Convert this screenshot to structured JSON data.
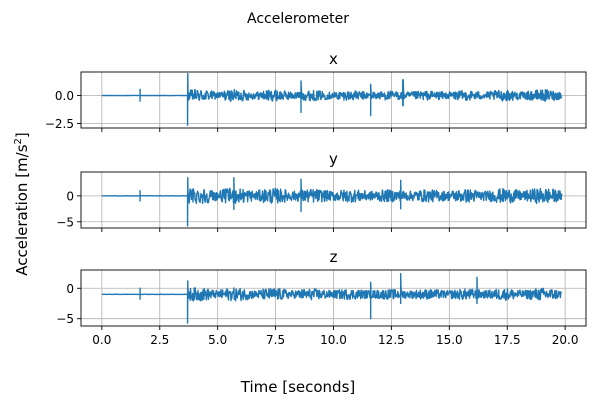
{
  "chart_data": {
    "type": "line",
    "title": "Accelerometer",
    "xlabel": "Time [seconds]",
    "ylabel_prefix": "Acceleration [m/s",
    "ylabel_sup": "2",
    "ylabel_suffix": "]",
    "grid": true,
    "color": "#1f77b4",
    "xlim": [
      -0.9,
      20.9
    ],
    "x_ticks": [
      0.0,
      2.5,
      5.0,
      7.5,
      10.0,
      12.5,
      15.0,
      17.5,
      20.0
    ],
    "x_tick_labels": [
      "0.0",
      "2.5",
      "5.0",
      "7.5",
      "10.0",
      "12.5",
      "15.0",
      "17.5",
      "20.0"
    ],
    "subplots": [
      {
        "title": "x",
        "ylim": [
          -2.9,
          2.1
        ],
        "y_ticks": [
          0.0,
          -2.5
        ],
        "y_tick_labels": [
          "0.0",
          "−2.5"
        ],
        "baseline": 0.0,
        "noise_amp": 0.55,
        "pre_spike": {
          "x": 1.65,
          "lo": -0.5,
          "hi": 0.55
        },
        "onset": {
          "x": 3.7,
          "lo": -2.65,
          "hi": 1.95
        },
        "spikes": [
          {
            "x": 8.6,
            "lo": -1.5,
            "hi": 1.3
          },
          {
            "x": 11.6,
            "lo": -1.8,
            "hi": 1.0
          },
          {
            "x": 13.0,
            "lo": -0.9,
            "hi": 1.4
          }
        ],
        "x_end": 19.85
      },
      {
        "title": "y",
        "ylim": [
          -6.2,
          4.6
        ],
        "y_ticks": [
          0,
          -5
        ],
        "y_tick_labels": [
          "0",
          "−5"
        ],
        "baseline": 0.0,
        "noise_amp": 1.6,
        "pre_spike": {
          "x": 1.65,
          "lo": -1.0,
          "hi": 1.0
        },
        "onset": {
          "x": 3.7,
          "lo": -5.8,
          "hi": 3.5
        },
        "spikes": [
          {
            "x": 5.7,
            "lo": -2.6,
            "hi": 3.5
          },
          {
            "x": 8.6,
            "lo": -3.0,
            "hi": 3.2
          },
          {
            "x": 12.9,
            "lo": -2.5,
            "hi": 3.0
          }
        ],
        "x_end": 19.85
      },
      {
        "title": "z",
        "ylim": [
          -6.2,
          3.0
        ],
        "y_ticks": [
          0,
          -5
        ],
        "y_tick_labels": [
          "0",
          "−5"
        ],
        "baseline": -1.0,
        "noise_amp": 1.1,
        "pre_spike": {
          "x": 1.65,
          "lo": -1.8,
          "hi": 0.0
        },
        "onset": {
          "x": 3.7,
          "lo": -5.7,
          "hi": 1.2
        },
        "spikes": [
          {
            "x": 11.6,
            "lo": -5.0,
            "hi": 1.0
          },
          {
            "x": 12.9,
            "lo": -2.5,
            "hi": 2.4
          },
          {
            "x": 16.2,
            "lo": -2.5,
            "hi": 1.8
          }
        ],
        "x_end": 19.85
      }
    ]
  }
}
